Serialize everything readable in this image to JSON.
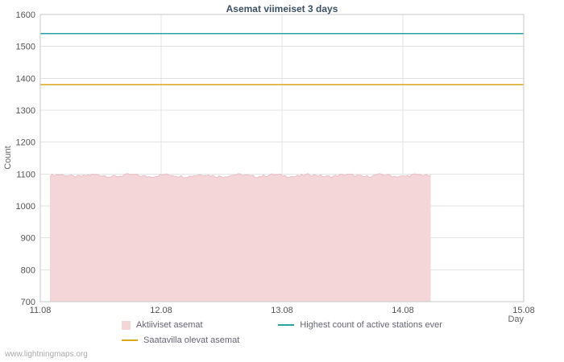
{
  "title": "Asemat viimeiset 3 days",
  "watermark": "www.lightningmaps.org",
  "colors": {
    "title": "#3d5266",
    "grid": "#e4e4e4",
    "plot_border": "#c8c8c8",
    "tick_text": "#555555",
    "axis_label_text": "#666666",
    "area_fill": "#f4d6d9",
    "area_edge": "#e9bec6",
    "available_line": "#dca718",
    "highest_line": "#29a3a3"
  },
  "chart_data": {
    "type": "area",
    "title": "Asemat viimeiset 3 days",
    "xlabel": "Day",
    "ylabel": "Count",
    "xlim": [
      11.08,
      15.08
    ],
    "ylim": [
      700,
      1600
    ],
    "x_tick_labels": [
      "11.08",
      "12.08",
      "13.08",
      "14.08",
      "15.08"
    ],
    "y_ticks": [
      700,
      800,
      900,
      1000,
      1100,
      1200,
      1300,
      1400,
      1500,
      1600
    ],
    "grid": true,
    "legend_position": "bottom",
    "series": [
      {
        "name": "Aktiiviset asemat",
        "type": "area",
        "color": "#f4d6d9",
        "edge_color": "#e9bec6",
        "x_start": 11.16,
        "x_end": 14.31,
        "value": 1095,
        "noise": 8
      },
      {
        "name": "Saatavilla olevat asemat",
        "type": "line",
        "color": "#dca718",
        "value": 1380
      },
      {
        "name": "Highest count of active stations ever",
        "type": "line",
        "color": "#29a3a3",
        "value": 1540
      }
    ]
  }
}
